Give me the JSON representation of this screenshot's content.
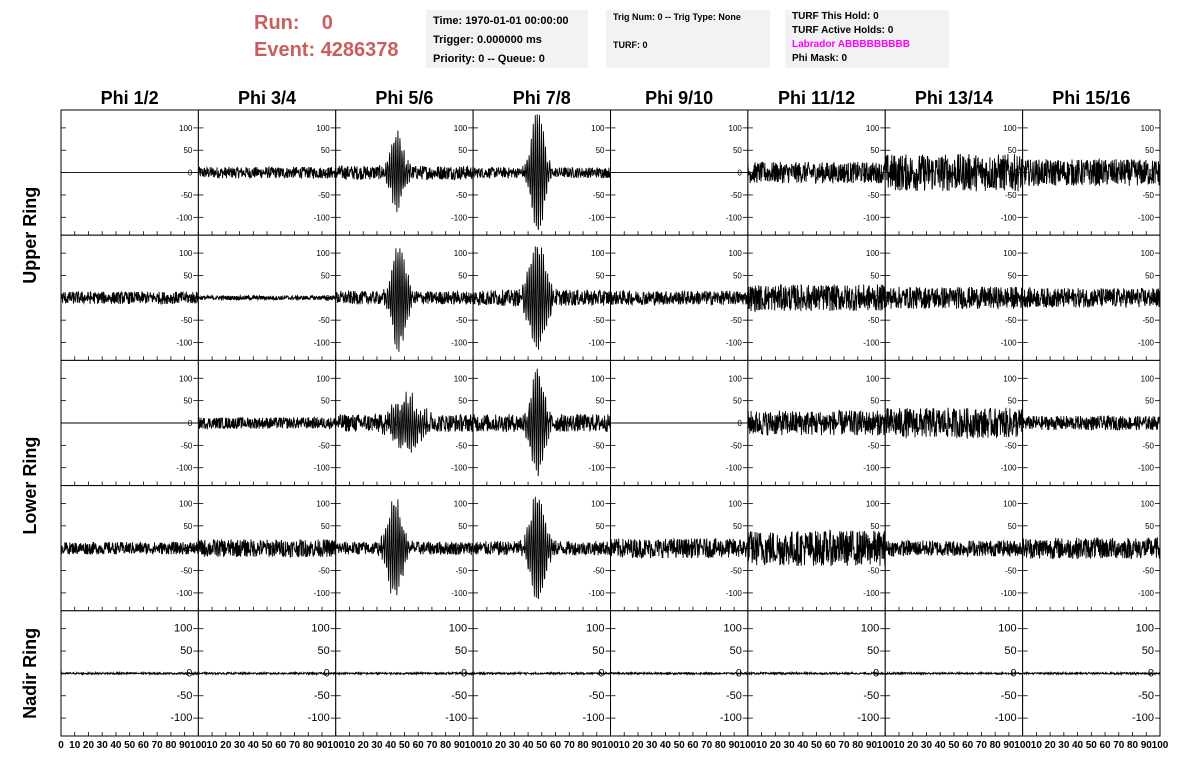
{
  "header": {
    "run_label": "Run:",
    "run_value": "0",
    "event_label": "Event:",
    "event_value": "4286378",
    "label_color": "#cd5c5c"
  },
  "info_boxes": {
    "time": "Time: 1970-01-01 00:00:00",
    "trigger": "Trigger: 0.000000 ms",
    "priority": "Priority: 0 -- Queue: 0",
    "trig_num": "Trig Num: 0 -- Trig Type: None",
    "turf": "TURF: 0",
    "turf_hold": "TURF This Hold: 0",
    "turf_active": "TURF Active Holds: 0",
    "labrador": "Labrador ABBBBBBBBB",
    "labrador_color": "#ff00ff",
    "phi_mask": "Phi Mask: 0"
  },
  "chart_data": {
    "type": "line",
    "columns": [
      "Phi 1/2",
      "Phi 3/4",
      "Phi 5/6",
      "Phi 7/8",
      "Phi 9/10",
      "Phi 11/12",
      "Phi 13/14",
      "Phi 15/16"
    ],
    "rows": [
      "Upper Ring",
      "Upper Ring",
      "Lower Ring",
      "Lower Ring",
      "Nadir Ring"
    ],
    "row_labels": [
      "Upper Ring",
      "Lower Ring",
      "Nadir Ring"
    ],
    "x_ticks": [
      "0",
      "10",
      "20",
      "30",
      "40",
      "50",
      "60",
      "70",
      "80",
      "90",
      "100"
    ],
    "y_ticks": [
      "100",
      "50",
      "0",
      "-50",
      "-100"
    ],
    "xlim": [
      0,
      100
    ],
    "ylim": [
      -140,
      140
    ],
    "panels": [
      [
        {
          "kind": "flat",
          "amp": 0
        },
        {
          "kind": "noise",
          "amp": 13
        },
        {
          "kind": "burst",
          "amp": 16,
          "center": 45,
          "peak": 80,
          "width": 6
        },
        {
          "kind": "burst",
          "amp": 12,
          "center": 47,
          "peak": 135,
          "width": 6
        },
        {
          "kind": "flat",
          "amp": 0
        },
        {
          "kind": "noise",
          "amp": 24
        },
        {
          "kind": "noise",
          "amp": 42
        },
        {
          "kind": "noise",
          "amp": 30
        }
      ],
      [
        {
          "kind": "noise",
          "amp": 14
        },
        {
          "kind": "noise",
          "amp": 5
        },
        {
          "kind": "burst",
          "amp": 15,
          "center": 46,
          "peak": 115,
          "width": 7
        },
        {
          "kind": "burst",
          "amp": 18,
          "center": 47,
          "peak": 115,
          "width": 8
        },
        {
          "kind": "noise",
          "amp": 16
        },
        {
          "kind": "noise",
          "amp": 30
        },
        {
          "kind": "noise",
          "amp": 25
        },
        {
          "kind": "noise",
          "amp": 22
        }
      ],
      [
        {
          "kind": "flat",
          "amp": 0
        },
        {
          "kind": "noise",
          "amp": 13
        },
        {
          "kind": "burst",
          "amp": 20,
          "center": 52,
          "peak": 55,
          "width": 12
        },
        {
          "kind": "burst",
          "amp": 20,
          "center": 47,
          "peak": 115,
          "width": 6
        },
        {
          "kind": "flat",
          "amp": 0
        },
        {
          "kind": "noise",
          "amp": 28
        },
        {
          "kind": "noise",
          "amp": 34
        },
        {
          "kind": "noise",
          "amp": 16
        }
      ],
      [
        {
          "kind": "noise",
          "amp": 14
        },
        {
          "kind": "noise",
          "amp": 20
        },
        {
          "kind": "burst",
          "amp": 15,
          "center": 43,
          "peak": 105,
          "width": 7
        },
        {
          "kind": "burst",
          "amp": 16,
          "center": 47,
          "peak": 120,
          "width": 7
        },
        {
          "kind": "noise",
          "amp": 22
        },
        {
          "kind": "noise",
          "amp": 40
        },
        {
          "kind": "noise",
          "amp": 18
        },
        {
          "kind": "noise",
          "amp": 24
        }
      ],
      [
        {
          "kind": "noise",
          "amp": 2
        },
        {
          "kind": "noise",
          "amp": 2
        },
        {
          "kind": "noise",
          "amp": 2
        },
        {
          "kind": "noise",
          "amp": 2
        },
        {
          "kind": "noise",
          "amp": 2
        },
        {
          "kind": "noise",
          "amp": 2
        },
        {
          "kind": "noise",
          "amp": 2
        },
        {
          "kind": "noise",
          "amp": 2
        }
      ]
    ]
  }
}
